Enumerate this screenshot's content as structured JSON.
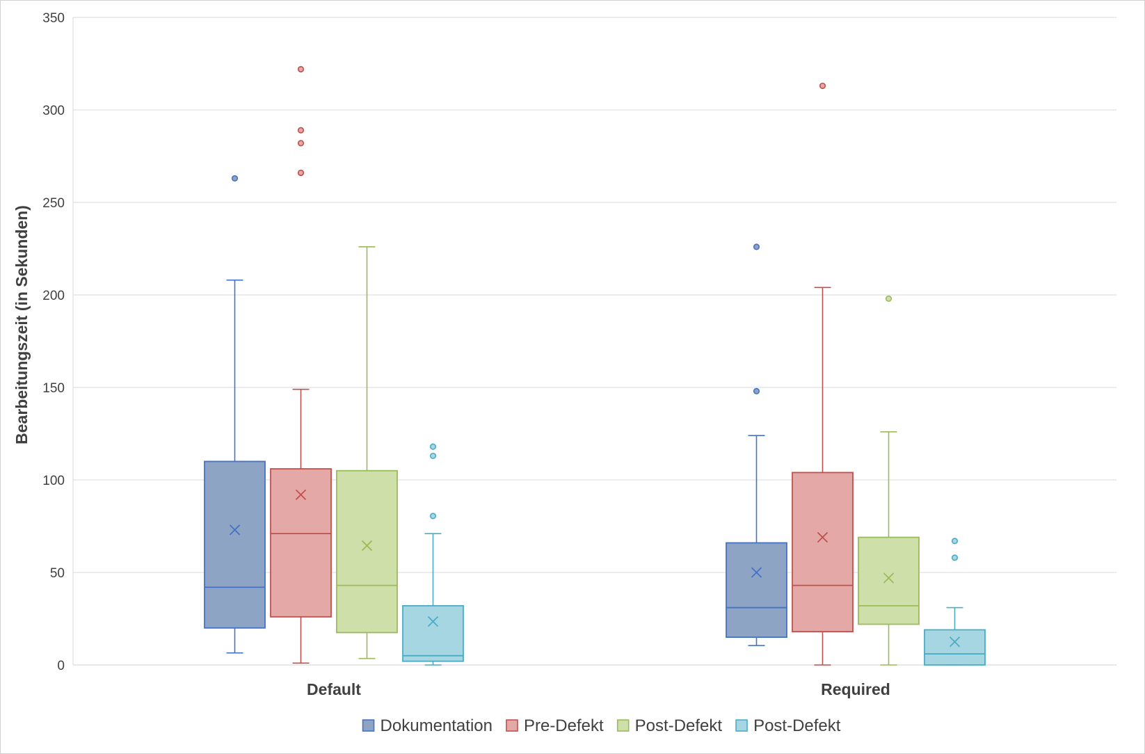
{
  "chart_data": {
    "type": "box",
    "title": "",
    "xlabel": "",
    "ylabel": "Bearbeitungszeit (in Sekunden)",
    "ylim": [
      0,
      350
    ],
    "yticks": [
      0,
      50,
      100,
      150,
      200,
      250,
      300,
      350
    ],
    "grid": true,
    "legend_position": "bottom",
    "categories": [
      "Default",
      "Required"
    ],
    "series": [
      {
        "name": "Dokumentation",
        "color": "#4472C4",
        "fill": "#8EA4C5",
        "boxes": [
          {
            "category": "Default",
            "min": 6.5,
            "q1": 20,
            "median": 42,
            "q3": 110,
            "max": 208,
            "mean": 73,
            "outliers": [
              263
            ]
          },
          {
            "category": "Required",
            "min": 10.5,
            "q1": 15,
            "median": 31,
            "q3": 66,
            "max": 124,
            "mean": 50,
            "outliers": [
              148,
              226
            ]
          }
        ]
      },
      {
        "name": "Pre-Defekt",
        "color": "#C0504D",
        "fill": "#E4A8A6",
        "boxes": [
          {
            "category": "Default",
            "min": 1,
            "q1": 26,
            "median": 71,
            "q3": 106,
            "max": 149,
            "mean": 92,
            "outliers": [
              266,
              282,
              289,
              322
            ]
          },
          {
            "category": "Required",
            "min": 0,
            "q1": 18,
            "median": 43,
            "q3": 104,
            "max": 204,
            "mean": 69,
            "outliers": [
              313
            ]
          }
        ]
      },
      {
        "name": "Post-Defekt",
        "color": "#9BBB59",
        "fill": "#CEDFAA",
        "boxes": [
          {
            "category": "Default",
            "min": 3.5,
            "q1": 17.5,
            "median": 43,
            "q3": 105,
            "max": 226,
            "mean": 64.5,
            "outliers": []
          },
          {
            "category": "Required",
            "min": 0,
            "q1": 22,
            "median": 32,
            "q3": 69,
            "max": 126,
            "mean": 47,
            "outliers": [
              198
            ]
          }
        ]
      },
      {
        "name": "Post-Defekt",
        "color": "#4BACC6",
        "fill": "#A5D6E2",
        "boxes": [
          {
            "category": "Default",
            "min": 0,
            "q1": 2,
            "median": 5,
            "q3": 32,
            "max": 71,
            "mean": 23.5,
            "outliers": [
              80.5,
              113,
              118
            ]
          },
          {
            "category": "Required",
            "min": 0,
            "q1": 0,
            "median": 6,
            "q3": 19,
            "max": 31,
            "mean": 12.5,
            "outliers": [
              58,
              67
            ]
          }
        ]
      }
    ]
  }
}
